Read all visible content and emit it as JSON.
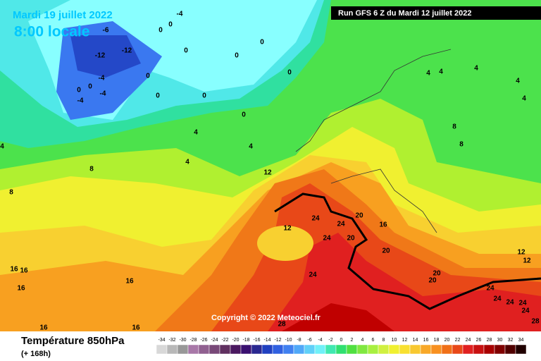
{
  "header": {
    "date": "Mardi 19 juillet 2022",
    "time": "8:00 locale",
    "run": "Run GFS 6 Z du Mardi 12 juillet 2022"
  },
  "footer": {
    "title": "Température 850hPa",
    "lead": "(+ 168h)",
    "copyright": "Copyright © 2022 Meteociel.fr"
  },
  "scale": {
    "values": [
      -34,
      -32,
      -30,
      -28,
      -26,
      -24,
      -22,
      -20,
      -18,
      -16,
      -14,
      -12,
      -10,
      -8,
      -6,
      -4,
      -2,
      0,
      2,
      4,
      6,
      8,
      10,
      12,
      14,
      16,
      18,
      20,
      22,
      24,
      26,
      28,
      30,
      32,
      34
    ],
    "colors": [
      "#d8d8d8",
      "#b8b8b8",
      "#989898",
      "#a878a8",
      "#906090",
      "#784878",
      "#603060",
      "#4a1860",
      "#3a1070",
      "#2a2890",
      "#2040c0",
      "#3060e0",
      "#4080f0",
      "#50a8f8",
      "#60d0f8",
      "#70f0f8",
      "#40e8b0",
      "#30e070",
      "#50e040",
      "#80e840",
      "#a8f040",
      "#d0f040",
      "#f0f030",
      "#f8e030",
      "#f8c830",
      "#f8a828",
      "#f89020",
      "#f07018",
      "#e84818",
      "#e02020",
      "#c81010",
      "#a80000",
      "#800000",
      "#500000",
      "#200000"
    ]
  },
  "contour_labels": [
    -4,
    -6,
    0,
    0,
    -12,
    -12,
    -4,
    -4,
    -4,
    0,
    0,
    0,
    0,
    0,
    0,
    0,
    0,
    0,
    0,
    4,
    4,
    4,
    4,
    4,
    4,
    4,
    4,
    4,
    8,
    8,
    8,
    8,
    12,
    12,
    12,
    12,
    24,
    24,
    24,
    20,
    20,
    16,
    20,
    20,
    20,
    24,
    16,
    16,
    16,
    16,
    16,
    16,
    24,
    24,
    24,
    24,
    24,
    28,
    28
  ]
}
